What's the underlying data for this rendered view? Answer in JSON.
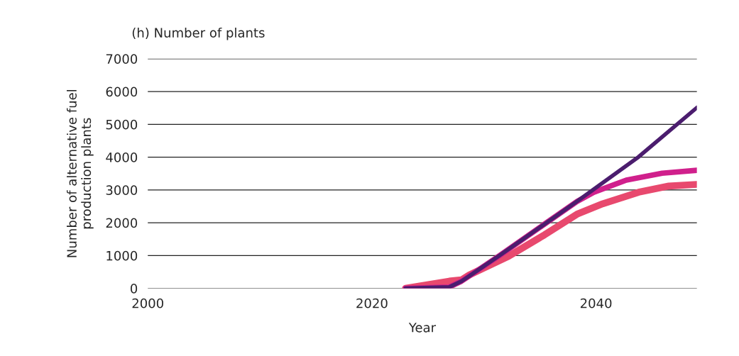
{
  "chart_data": {
    "type": "line",
    "title": "(h) Number of plants",
    "xlabel": "Year",
    "ylabel": "Number of alternative fuel\nproduction plants",
    "series": [
      {
        "color": "#e8496e",
        "x": [
          2023,
          2026.9,
          2028,
          2028.7,
          2032.2,
          2035.4,
          2038.3,
          2040.6,
          2043.8,
          2046.5,
          2049
        ],
        "values": [
          0,
          220,
          260,
          410,
          980,
          1630,
          2260,
          2580,
          2930,
          3120,
          3170
        ]
      },
      {
        "color": "#d0208c",
        "x": [
          2023,
          2026.9,
          2028,
          2029.4,
          2031.3,
          2038.3,
          2039.8,
          2042.7,
          2045.9,
          2049
        ],
        "values": [
          0,
          40,
          220,
          540,
          980,
          2650,
          2930,
          3300,
          3510,
          3600
        ]
      },
      {
        "color": "#4b1d6e",
        "x": [
          2023,
          2026.9,
          2028,
          2029.4,
          2031.3,
          2038.3,
          2043.8,
          2049
        ],
        "values": [
          0,
          40,
          220,
          540,
          980,
          2650,
          4010,
          5510
        ]
      }
    ],
    "xlim": [
      2000,
      2049
    ],
    "xticks": [
      2000,
      2020,
      2040
    ],
    "ylim": [
      0,
      7000
    ],
    "yticks": [
      0,
      1000,
      2000,
      3000,
      4000,
      5000,
      6000,
      7000
    ],
    "grid": "y",
    "legend": false,
    "marker": "none",
    "line_style": "solid"
  }
}
